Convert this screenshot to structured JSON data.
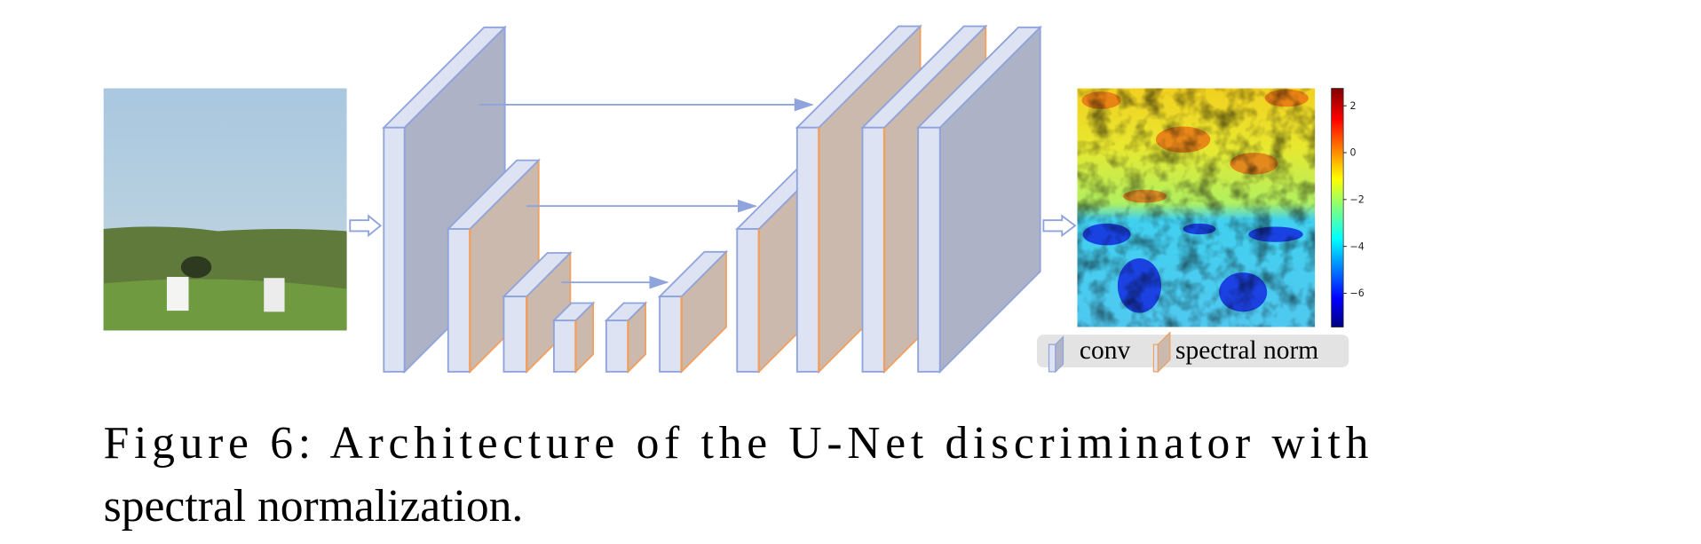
{
  "figure": {
    "colorbar": {
      "ticks": [
        "2",
        "0",
        "−2",
        "−4",
        "−6"
      ]
    },
    "legend": {
      "items": [
        "conv",
        "spectral norm"
      ]
    },
    "caption": {
      "lines": [
        "Figure 6:  Architecture of the U-Net discriminator with",
        "spectral normalization."
      ]
    }
  }
}
